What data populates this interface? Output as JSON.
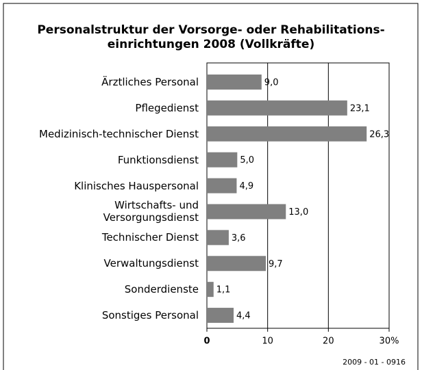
{
  "chart_data": {
    "type": "hbar",
    "title": "Personalstruktur der Vorsorge- oder Rehabilitations-\neinrichtungen 2008 (Vollkräfte)",
    "categories": [
      "Ärztliches Personal",
      "Pflegedienst",
      "Medizinisch-technischer Dienst",
      "Funktionsdienst",
      "Klinisches Hauspersonal",
      "Wirtschafts- und\nVersorgungsdienst",
      "Technischer Dienst",
      "Verwaltungsdienst",
      "Sonderdienste",
      "Sonstiges Personal"
    ],
    "values": [
      9.0,
      23.1,
      26.3,
      5.0,
      4.9,
      13.0,
      3.6,
      9.7,
      1.1,
      4.4
    ],
    "value_labels": [
      "9,0",
      "23,1",
      "26,3",
      "5,0",
      "4,9",
      "13,0",
      "3,6",
      "9,7",
      "1,1",
      "4,4"
    ],
    "color": "#808080",
    "xlim": [
      0,
      30
    ],
    "xticks": [
      0,
      10,
      20,
      {
        "value": 30,
        "label": "30%"
      }
    ],
    "grid": true,
    "footnote": "2009 - 01 - 0916"
  }
}
